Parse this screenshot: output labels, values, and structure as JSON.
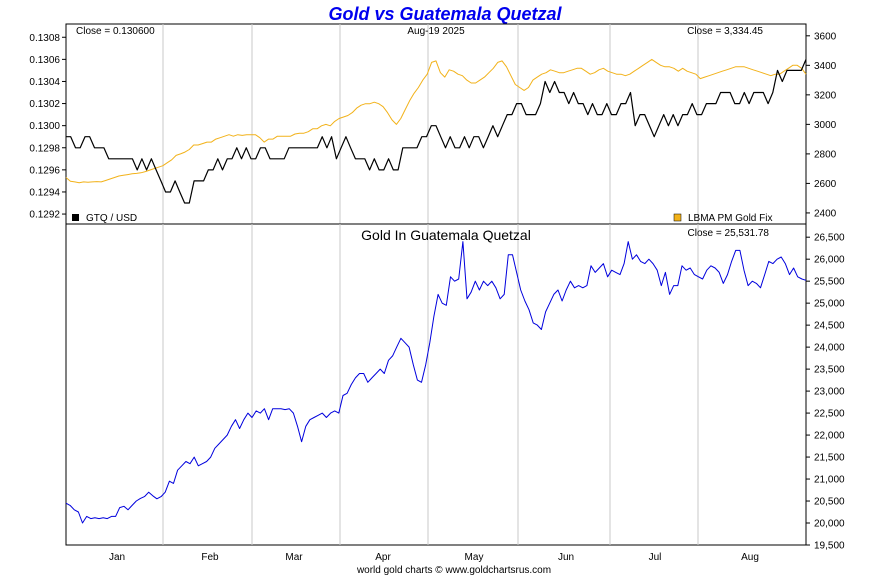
{
  "title": "Gold vs Guatemala Quetzal",
  "footer": "world gold charts © www.goldchartsrus.com",
  "colors": {
    "title": "#0000ee",
    "gtq": "#000000",
    "gold": "#f2b21a",
    "quetzal_gold": "#0000dd",
    "grid": "#c8c8c8"
  },
  "chart_data": [
    {
      "type": "line",
      "panel": "top",
      "date_label": "Aug-19  2025",
      "close_left": "Close = 0.130600",
      "close_right": "Close = 3,334.45",
      "x_ticks": [
        "Jan",
        "Feb",
        "Mar",
        "Apr",
        "May",
        "Jun",
        "Jul",
        "Aug"
      ],
      "y_left_ticks": [
        "0.1292",
        "0.1294",
        "0.1296",
        "0.1298",
        "0.1300",
        "0.1302",
        "0.1304",
        "0.1306",
        "0.1308"
      ],
      "y_right_ticks": [
        "2400",
        "2600",
        "2800",
        "3000",
        "3200",
        "3400",
        "3600"
      ],
      "ylim_left": [
        0.12911,
        0.13092
      ],
      "ylim_right": [
        2325,
        3680
      ],
      "series": [
        {
          "name": "GTQ / USD",
          "axis": "left",
          "values": [
            0.1299,
            0.1299,
            0.1298,
            0.1298,
            0.1299,
            0.1299,
            0.1298,
            0.1298,
            0.1298,
            0.1297,
            0.1297,
            0.1297,
            0.1297,
            0.1297,
            0.1297,
            0.1296,
            0.1297,
            0.1296,
            0.1297,
            0.1296,
            0.1295,
            0.1294,
            0.1294,
            0.1295,
            0.1294,
            0.1293,
            0.1293,
            0.1295,
            0.1295,
            0.1295,
            0.1296,
            0.1296,
            0.1297,
            0.1296,
            0.1297,
            0.1297,
            0.1298,
            0.1297,
            0.1298,
            0.1297,
            0.1297,
            0.1298,
            0.1298,
            0.1297,
            0.1297,
            0.1297,
            0.1297,
            0.1298,
            0.1298,
            0.1298,
            0.1298,
            0.1298,
            0.1298,
            0.1298,
            0.1299,
            0.1298,
            0.1299,
            0.1297,
            0.1298,
            0.1299,
            0.1298,
            0.1297,
            0.1297,
            0.1297,
            0.1296,
            0.1297,
            0.1296,
            0.1296,
            0.1297,
            0.1296,
            0.1296,
            0.1298,
            0.1298,
            0.1298,
            0.1298,
            0.1299,
            0.1299,
            0.13,
            0.13,
            0.1299,
            0.1298,
            0.1299,
            0.1298,
            0.1298,
            0.1299,
            0.1298,
            0.1299,
            0.1299,
            0.1298,
            0.1299,
            0.13,
            0.1299,
            0.13,
            0.1301,
            0.1301,
            0.1302,
            0.1302,
            0.1301,
            0.1301,
            0.1301,
            0.1302,
            0.1304,
            0.1303,
            0.1304,
            0.1303,
            0.1303,
            0.1302,
            0.1303,
            0.1302,
            0.1302,
            0.1301,
            0.1302,
            0.1301,
            0.1301,
            0.1302,
            0.1301,
            0.1301,
            0.1302,
            0.1302,
            0.1303,
            0.13,
            0.1301,
            0.1301,
            0.13,
            0.1299,
            0.13,
            0.1301,
            0.13,
            0.1301,
            0.13,
            0.1301,
            0.1301,
            0.1302,
            0.1301,
            0.1301,
            0.1302,
            0.1302,
            0.1302,
            0.1303,
            0.1303,
            0.1303,
            0.1302,
            0.1302,
            0.1303,
            0.1302,
            0.1303,
            0.1303,
            0.1303,
            0.1302,
            0.1303,
            0.1305,
            0.1304,
            0.1305,
            0.1305,
            0.1305,
            0.1305,
            0.1306
          ]
        },
        {
          "name": "LBMA PM Gold Fix",
          "axis": "right",
          "values": [
            2640,
            2614,
            2610,
            2605,
            2610,
            2608,
            2610,
            2612,
            2610,
            2620,
            2630,
            2640,
            2650,
            2655,
            2660,
            2665,
            2668,
            2672,
            2680,
            2690,
            2700,
            2710,
            2720,
            2740,
            2760,
            2790,
            2800,
            2812,
            2830,
            2860,
            2860,
            2870,
            2880,
            2880,
            2900,
            2910,
            2920,
            2930,
            2920,
            2930,
            2925,
            2930,
            2930,
            2930,
            2910,
            2880,
            2900,
            2900,
            2920,
            2920,
            2920,
            2920,
            2935,
            2940,
            2940,
            2950,
            2970,
            2970,
            2990,
            3000,
            2990,
            3020,
            3040,
            3050,
            3060,
            3080,
            3110,
            3130,
            3140,
            3140,
            3150,
            3140,
            3120,
            3080,
            3030,
            3000,
            3040,
            3100,
            3160,
            3210,
            3250,
            3300,
            3340,
            3420,
            3430,
            3350,
            3320,
            3370,
            3360,
            3340,
            3330,
            3300,
            3280,
            3280,
            3300,
            3320,
            3350,
            3380,
            3420,
            3430,
            3390,
            3330,
            3270,
            3250,
            3230,
            3250,
            3300,
            3320,
            3340,
            3350,
            3370,
            3360,
            3350,
            3350,
            3360,
            3370,
            3380,
            3380,
            3360,
            3340,
            3350,
            3370,
            3380,
            3360,
            3350,
            3340,
            3340,
            3330,
            3340,
            3360,
            3380,
            3400,
            3420,
            3440,
            3420,
            3400,
            3390,
            3390,
            3380,
            3360,
            3380,
            3360,
            3350,
            3340,
            3310,
            3320,
            3330,
            3340,
            3350,
            3360,
            3370,
            3380,
            3390,
            3390,
            3390,
            3380,
            3370,
            3360,
            3350,
            3340,
            3330,
            3340,
            3340,
            3360,
            3380,
            3400,
            3400,
            3380,
            3340
          ]
        }
      ]
    },
    {
      "type": "line",
      "panel": "bottom",
      "title": "Gold In Guatemala Quetzal",
      "close_right": "Close = 25,531.78",
      "x_ticks": [
        "Jan",
        "Feb",
        "Mar",
        "Apr",
        "May",
        "Jun",
        "Jul",
        "Aug"
      ],
      "y_right_ticks": [
        "19,500",
        "20,000",
        "20,500",
        "21,000",
        "21,500",
        "22,000",
        "22,500",
        "23,000",
        "23,500",
        "24,000",
        "24,500",
        "25,000",
        "25,500",
        "26,000",
        "26,500"
      ],
      "ylim": [
        19500,
        26800
      ],
      "series": [
        {
          "name": "Gold In Guatemala Quetzal",
          "values": [
            20450,
            20400,
            20300,
            20250,
            20000,
            20150,
            20100,
            20120,
            20100,
            20120,
            20100,
            20150,
            20150,
            20350,
            20380,
            20300,
            20400,
            20500,
            20560,
            20600,
            20700,
            20620,
            20550,
            20600,
            20700,
            20950,
            20900,
            21200,
            21300,
            21400,
            21350,
            21500,
            21300,
            21350,
            21400,
            21500,
            21700,
            21800,
            21900,
            22000,
            22200,
            22350,
            22150,
            22350,
            22500,
            22400,
            22550,
            22500,
            22600,
            22350,
            22600,
            22600,
            22600,
            22580,
            22600,
            22500,
            22200,
            21850,
            22200,
            22350,
            22400,
            22450,
            22500,
            22400,
            22500,
            22550,
            22500,
            22900,
            22950,
            23150,
            23300,
            23400,
            23400,
            23200,
            23300,
            23400,
            23500,
            23400,
            23700,
            23800,
            24000,
            24200,
            24100,
            24000,
            23600,
            23250,
            23200,
            23600,
            24100,
            24700,
            25200,
            25000,
            24950,
            25600,
            25500,
            25550,
            26400,
            25100,
            25250,
            25500,
            25300,
            25500,
            25400,
            25500,
            25350,
            25100,
            25200,
            26100,
            26100,
            25700,
            25300,
            25050,
            24850,
            24550,
            24500,
            24400,
            24800,
            25000,
            25200,
            25300,
            25050,
            25300,
            25500,
            25350,
            25400,
            25350,
            25400,
            25850,
            25700,
            25800,
            25900,
            25600,
            25750,
            25700,
            25650,
            25900,
            26400,
            26000,
            26100,
            25950,
            25900,
            26000,
            25900,
            25750,
            25400,
            25700,
            25200,
            25400,
            25400,
            25850,
            25750,
            25800,
            25650,
            25600,
            25550,
            25750,
            25850,
            25800,
            25700,
            25450,
            25650,
            25950,
            26200,
            26200,
            25750,
            25400,
            25500,
            25450,
            25350,
            25650,
            25950,
            25900,
            26000,
            26050,
            25900,
            25650,
            25800,
            25600,
            25550,
            25520
          ]
        }
      ]
    }
  ]
}
